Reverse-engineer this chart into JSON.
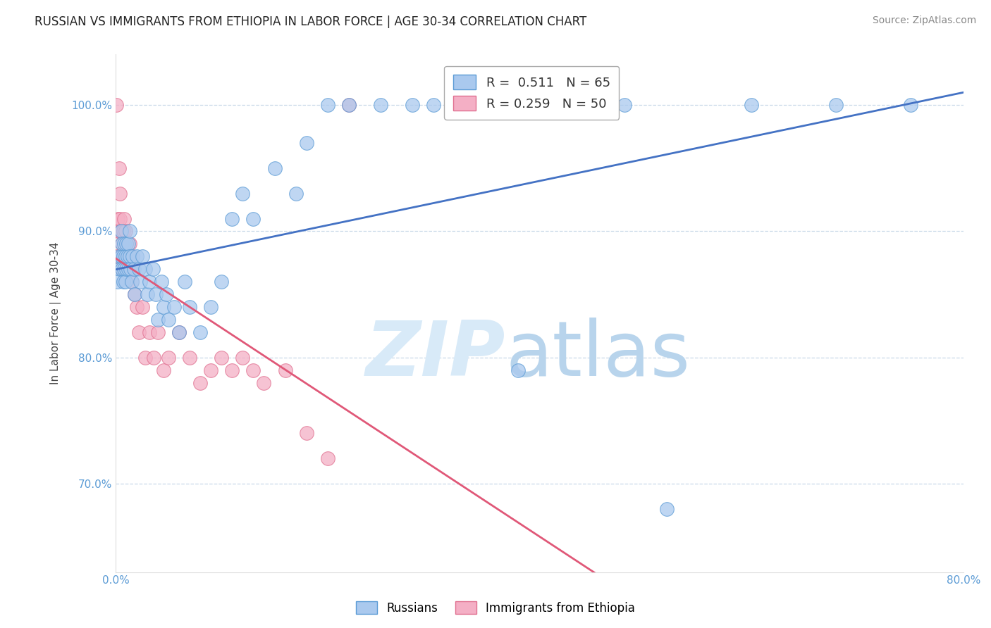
{
  "title": "RUSSIAN VS IMMIGRANTS FROM ETHIOPIA IN LABOR FORCE | AGE 30-34 CORRELATION CHART",
  "source": "Source: ZipAtlas.com",
  "ylabel": "In Labor Force | Age 30-34",
  "x_min": 0.0,
  "x_max": 0.8,
  "y_min": 0.63,
  "y_max": 1.04,
  "y_ticks": [
    0.7,
    0.8,
    0.9,
    1.0
  ],
  "y_tick_labels": [
    "70.0%",
    "80.0%",
    "90.0%",
    "100.0%"
  ],
  "R_russian": 0.511,
  "N_russian": 65,
  "R_ethiopia": 0.259,
  "N_ethiopia": 50,
  "russian_color": "#aac9ee",
  "ethiopia_color": "#f4afc5",
  "russian_edge_color": "#5b9bd5",
  "ethiopia_edge_color": "#e07090",
  "russian_line_color": "#4472c4",
  "ethiopia_line_color": "#e05878",
  "background_color": "#ffffff",
  "grid_color": "#c8d8e8",
  "russians_x": [
    0.002,
    0.003,
    0.004,
    0.005,
    0.005,
    0.006,
    0.006,
    0.007,
    0.007,
    0.008,
    0.008,
    0.009,
    0.009,
    0.01,
    0.01,
    0.011,
    0.012,
    0.012,
    0.013,
    0.013,
    0.014,
    0.015,
    0.016,
    0.017,
    0.018,
    0.02,
    0.022,
    0.023,
    0.025,
    0.028,
    0.03,
    0.032,
    0.035,
    0.038,
    0.04,
    0.043,
    0.045,
    0.048,
    0.05,
    0.055,
    0.06,
    0.065,
    0.07,
    0.08,
    0.09,
    0.1,
    0.11,
    0.12,
    0.13,
    0.15,
    0.17,
    0.18,
    0.2,
    0.22,
    0.25,
    0.28,
    0.3,
    0.35,
    0.38,
    0.42,
    0.48,
    0.52,
    0.6,
    0.68,
    0.75
  ],
  "russians_y": [
    0.86,
    0.88,
    0.87,
    0.88,
    0.9,
    0.87,
    0.89,
    0.86,
    0.88,
    0.87,
    0.89,
    0.86,
    0.88,
    0.87,
    0.89,
    0.88,
    0.87,
    0.89,
    0.88,
    0.9,
    0.87,
    0.86,
    0.88,
    0.87,
    0.85,
    0.88,
    0.87,
    0.86,
    0.88,
    0.87,
    0.85,
    0.86,
    0.87,
    0.85,
    0.83,
    0.86,
    0.84,
    0.85,
    0.83,
    0.84,
    0.82,
    0.86,
    0.84,
    0.82,
    0.84,
    0.86,
    0.91,
    0.93,
    0.91,
    0.95,
    0.93,
    0.97,
    1.0,
    1.0,
    1.0,
    1.0,
    1.0,
    1.0,
    0.79,
    1.0,
    1.0,
    0.68,
    1.0,
    1.0,
    1.0
  ],
  "ethiopia_x": [
    0.001,
    0.002,
    0.002,
    0.003,
    0.003,
    0.004,
    0.004,
    0.005,
    0.005,
    0.006,
    0.006,
    0.007,
    0.007,
    0.008,
    0.008,
    0.009,
    0.009,
    0.01,
    0.01,
    0.011,
    0.012,
    0.013,
    0.014,
    0.015,
    0.016,
    0.018,
    0.02,
    0.022,
    0.025,
    0.028,
    0.032,
    0.036,
    0.04,
    0.045,
    0.05,
    0.06,
    0.07,
    0.08,
    0.09,
    0.1,
    0.11,
    0.12,
    0.13,
    0.14,
    0.16,
    0.18,
    0.2,
    0.22,
    0.001,
    0.003
  ],
  "ethiopia_y": [
    0.88,
    0.9,
    0.91,
    0.88,
    0.9,
    0.91,
    0.93,
    0.88,
    0.9,
    0.87,
    0.89,
    0.88,
    0.9,
    0.87,
    0.91,
    0.88,
    0.9,
    0.87,
    0.89,
    0.88,
    0.87,
    0.89,
    0.88,
    0.86,
    0.87,
    0.85,
    0.84,
    0.82,
    0.84,
    0.8,
    0.82,
    0.8,
    0.82,
    0.79,
    0.8,
    0.82,
    0.8,
    0.78,
    0.79,
    0.8,
    0.79,
    0.8,
    0.79,
    0.78,
    0.79,
    0.74,
    0.72,
    1.0,
    1.0,
    0.95
  ]
}
